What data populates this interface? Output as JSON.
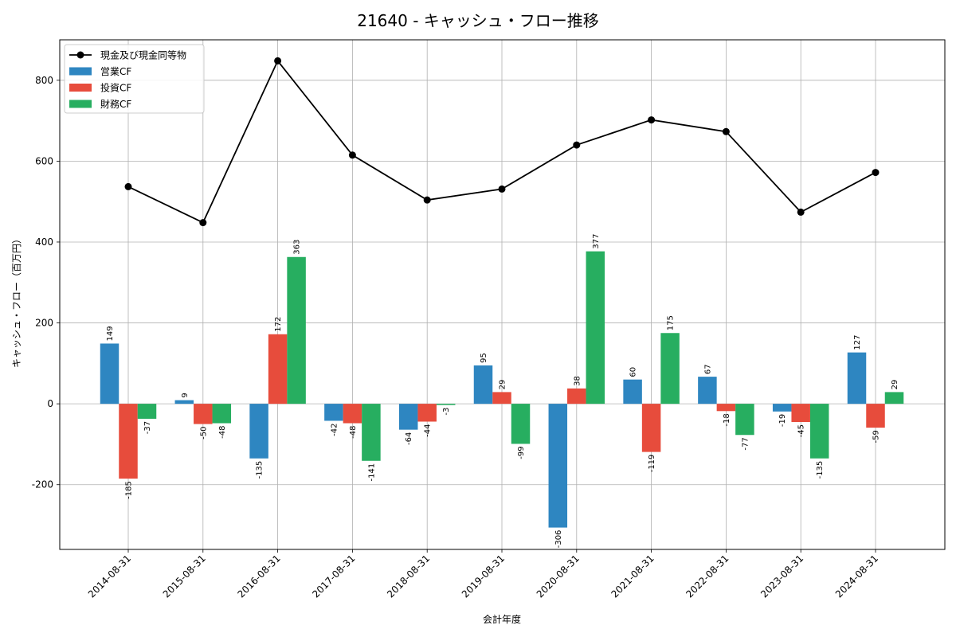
{
  "chart_data": {
    "type": "bar",
    "title": "21640 - キャッシュ・フロー推移",
    "xlabel": "会計年度",
    "ylabel": "キャッシュ・フロー（百万円）",
    "ylim": [
      -360,
      900
    ],
    "yticks": [
      -200,
      0,
      200,
      400,
      600,
      800
    ],
    "grid": true,
    "legend_position": "top-left",
    "categories": [
      "2014-08-31",
      "2015-08-31",
      "2016-08-31",
      "2017-08-31",
      "2018-08-31",
      "2019-08-31",
      "2020-08-31",
      "2021-08-31",
      "2022-08-31",
      "2023-08-31",
      "2024-08-31"
    ],
    "series": [
      {
        "name": "営業CF",
        "type": "bar",
        "color": "#2e86c1",
        "values": [
          149,
          9,
          -135,
          -42,
          -64,
          95,
          -306,
          60,
          67,
          -19,
          127
        ]
      },
      {
        "name": "投資CF",
        "type": "bar",
        "color": "#e74c3c",
        "values": [
          -185,
          -50,
          172,
          -48,
          -44,
          29,
          38,
          -119,
          -18,
          -45,
          -59
        ]
      },
      {
        "name": "財務CF",
        "type": "bar",
        "color": "#27ae60",
        "values": [
          -37,
          -48,
          363,
          -141,
          -3,
          -99,
          377,
          175,
          -77,
          -135,
          29
        ]
      },
      {
        "name": "現金及び現金同等物",
        "type": "line",
        "color": "#000000",
        "values": [
          537,
          448,
          848,
          615,
          504,
          531,
          640,
          702,
          673,
          474,
          572
        ]
      }
    ]
  }
}
